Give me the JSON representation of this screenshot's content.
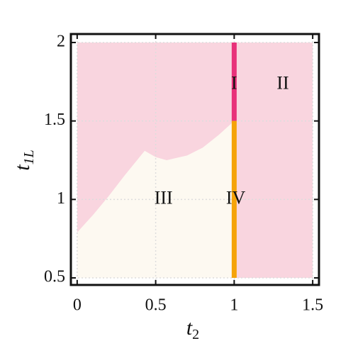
{
  "chart_data": {
    "type": "phase",
    "xlabel": "t",
    "xlabel_sub": "2",
    "ylabel": "t",
    "ylabel_sub": "1L",
    "xlim": [
      -0.04,
      1.54
    ],
    "ylim": [
      0.455,
      2.054
    ],
    "xticks": [
      0,
      0.5,
      1,
      1.5
    ],
    "yticks": [
      0.5,
      1,
      1.5,
      2
    ],
    "grid": true,
    "regions": [
      {
        "color": "#f9d5df",
        "x": [
          0,
          1.5,
          1.5,
          0
        ],
        "y": [
          0.5,
          0.5,
          2,
          2
        ]
      },
      {
        "color": "#fdf9f1",
        "x": [
          0,
          0.1,
          0.2,
          0.3,
          0.43,
          0.5,
          0.57,
          0.7,
          0.8,
          0.9,
          1,
          1,
          0
        ],
        "y": [
          0.79,
          0.9,
          1.02,
          1.15,
          1.31,
          1.27,
          1.25,
          1.28,
          1.33,
          1.41,
          1.5,
          0.5,
          0.5
        ]
      }
    ],
    "lines": [
      {
        "color": "#e8317a",
        "x": [
          1,
          1
        ],
        "y": [
          1.5,
          2
        ]
      },
      {
        "color": "#f5a30a",
        "x": [
          1,
          1
        ],
        "y": [
          0.5,
          1.5
        ]
      }
    ],
    "annotations": [
      {
        "text": "I",
        "x": 1,
        "y": 1.73
      },
      {
        "text": "II",
        "x": 1.31,
        "y": 1.73
      },
      {
        "text": "III",
        "x": 0.55,
        "y": 1.0
      },
      {
        "text": "IV",
        "x": 1.01,
        "y": 1.0
      }
    ]
  }
}
